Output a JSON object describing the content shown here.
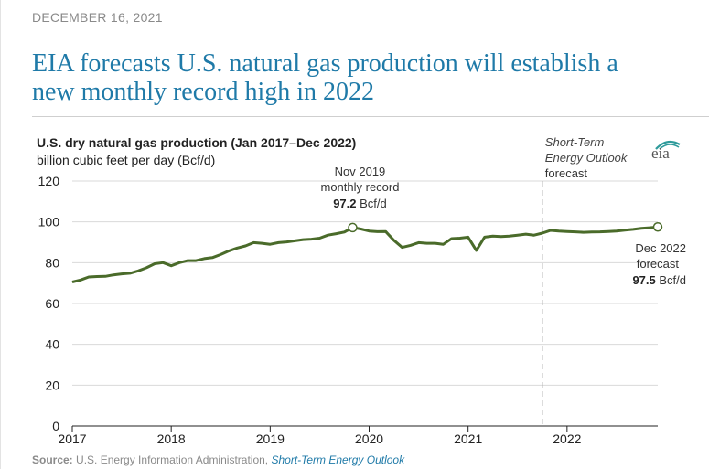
{
  "date": "DECEMBER 16, 2021",
  "headline": {
    "line1": "EIA forecasts U.S. natural gas production will establish a",
    "line2": "new monthly record high in 2022"
  },
  "logo": {
    "text": "eia",
    "name": "eia-logo"
  },
  "source": {
    "label": "Source:",
    "org": "U.S. Energy Information Administration,",
    "link": "Short-Term Energy Outlook"
  },
  "colors": {
    "line": "#4a6b2a",
    "headline": "#1f7aa8",
    "grid": "#d9d9d9",
    "divider": "#aaaaaa"
  },
  "chart_data": {
    "type": "line",
    "title": "U.S. dry natural gas production (Jan 2017–Dec 2022)",
    "subtitle": "billion cubic feet per day (Bcf/d)",
    "ylim": [
      0,
      120
    ],
    "yticks": [
      0,
      20,
      40,
      60,
      80,
      100,
      120
    ],
    "xlim": [
      "2017-01",
      "2022-12"
    ],
    "xticks": [
      "2017",
      "2018",
      "2019",
      "2020",
      "2021",
      "2022"
    ],
    "grid": "horizontal",
    "series": [
      {
        "name": "",
        "x": [
          "2017-01",
          "2017-02",
          "2017-03",
          "2017-04",
          "2017-05",
          "2017-06",
          "2017-07",
          "2017-08",
          "2017-09",
          "2017-10",
          "2017-11",
          "2017-12",
          "2018-01",
          "2018-02",
          "2018-03",
          "2018-04",
          "2018-05",
          "2018-06",
          "2018-07",
          "2018-08",
          "2018-09",
          "2018-10",
          "2018-11",
          "2018-12",
          "2019-01",
          "2019-02",
          "2019-03",
          "2019-04",
          "2019-05",
          "2019-06",
          "2019-07",
          "2019-08",
          "2019-09",
          "2019-10",
          "2019-11",
          "2019-12",
          "2020-01",
          "2020-02",
          "2020-03",
          "2020-04",
          "2020-05",
          "2020-06",
          "2020-07",
          "2020-08",
          "2020-09",
          "2020-10",
          "2020-11",
          "2020-12",
          "2021-01",
          "2021-02",
          "2021-03",
          "2021-04",
          "2021-05",
          "2021-06",
          "2021-07",
          "2021-08",
          "2021-09",
          "2021-10",
          "2021-11",
          "2021-12",
          "2022-01",
          "2022-02",
          "2022-03",
          "2022-04",
          "2022-05",
          "2022-06",
          "2022-07",
          "2022-08",
          "2022-09",
          "2022-10",
          "2022-11",
          "2022-12"
        ],
        "values": [
          70.5,
          71.5,
          73.0,
          73.2,
          73.3,
          74.0,
          74.5,
          74.8,
          76.0,
          77.5,
          79.5,
          80.0,
          78.5,
          80.0,
          81.0,
          81.0,
          82.0,
          82.5,
          84.0,
          85.8,
          87.2,
          88.2,
          89.8,
          89.5,
          89.0,
          89.8,
          90.2,
          90.7,
          91.3,
          91.5,
          92.0,
          93.5,
          94.2,
          95.0,
          97.2,
          96.5,
          95.5,
          95.2,
          95.3,
          91.0,
          87.5,
          88.5,
          89.8,
          89.5,
          89.5,
          89.0,
          91.8,
          92.0,
          92.5,
          86.0,
          92.5,
          93.0,
          92.8,
          93.0,
          93.5,
          94.0,
          93.5,
          94.5,
          95.8,
          95.5,
          95.3,
          95.1,
          94.9,
          95.0,
          95.1,
          95.3,
          95.5,
          95.9,
          96.3,
          96.8,
          97.1,
          97.5
        ]
      }
    ],
    "forecast_start": "2021-10",
    "forecast_label": [
      "Short-Term",
      "Energy Outlook",
      "forecast"
    ],
    "annotations": [
      {
        "x": "2019-11",
        "y": 97.2,
        "lines": [
          "Nov 2019",
          "monthly record"
        ],
        "value": "97.2",
        "unit": "Bcf/d"
      },
      {
        "x": "2022-12",
        "y": 97.5,
        "lines": [
          "Dec 2022",
          "forecast"
        ],
        "value": "97.5",
        "unit": "Bcf/d"
      }
    ]
  }
}
